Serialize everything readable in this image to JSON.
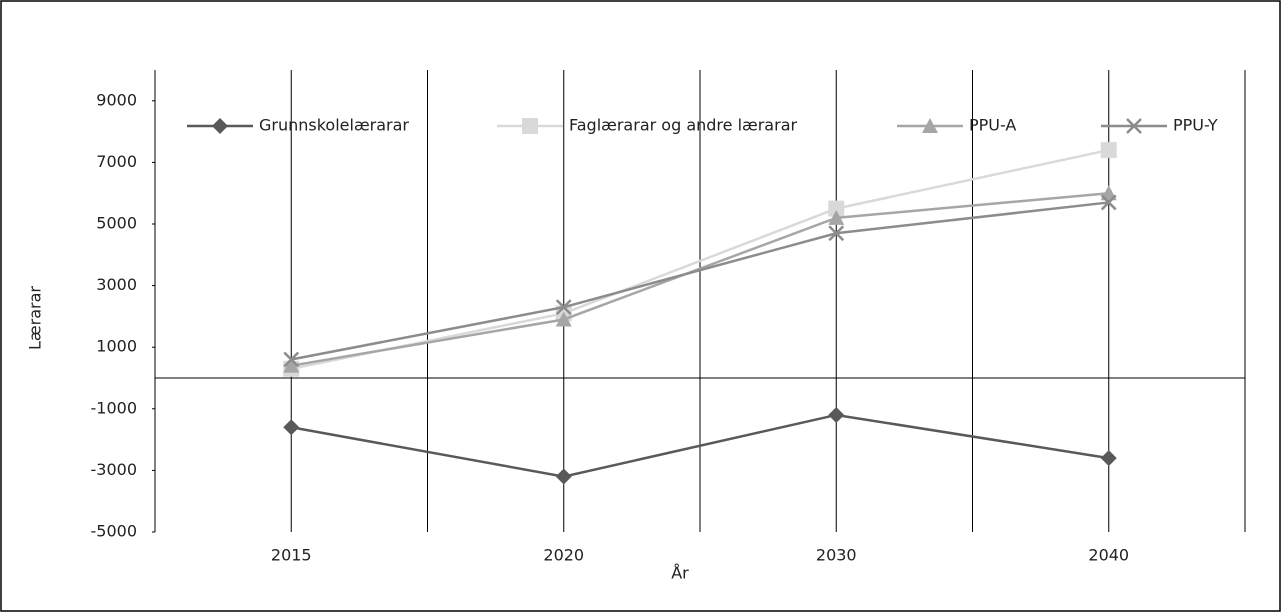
{
  "chart_data": {
    "type": "line",
    "x_label": "År",
    "y_label": "Lærarar",
    "categories": [
      "2015",
      "2020",
      "2030",
      "2040"
    ],
    "series": [
      {
        "name": "Grunnskolelærarar",
        "color": "#595959",
        "marker": "diamond",
        "values": [
          -1600,
          -3200,
          -1200,
          -2600
        ]
      },
      {
        "name": "Faglærarar og andre lærarar",
        "color": "#d9d9d9",
        "marker": "square",
        "values": [
          300,
          2100,
          5500,
          7400
        ]
      },
      {
        "name": "PPU-A",
        "color": "#a6a6a6",
        "marker": "triangle",
        "values": [
          400,
          1900,
          5200,
          6000
        ]
      },
      {
        "name": "PPU-Y",
        "color": "#8c8c8c",
        "marker": "x",
        "values": [
          600,
          2300,
          4700,
          5700
        ]
      }
    ],
    "ylim": [
      -5000,
      10000
    ],
    "yticks": [
      -5000,
      -3000,
      -1000,
      1000,
      3000,
      5000,
      7000,
      9000
    ],
    "legend": "top",
    "grid": "vertical"
  }
}
